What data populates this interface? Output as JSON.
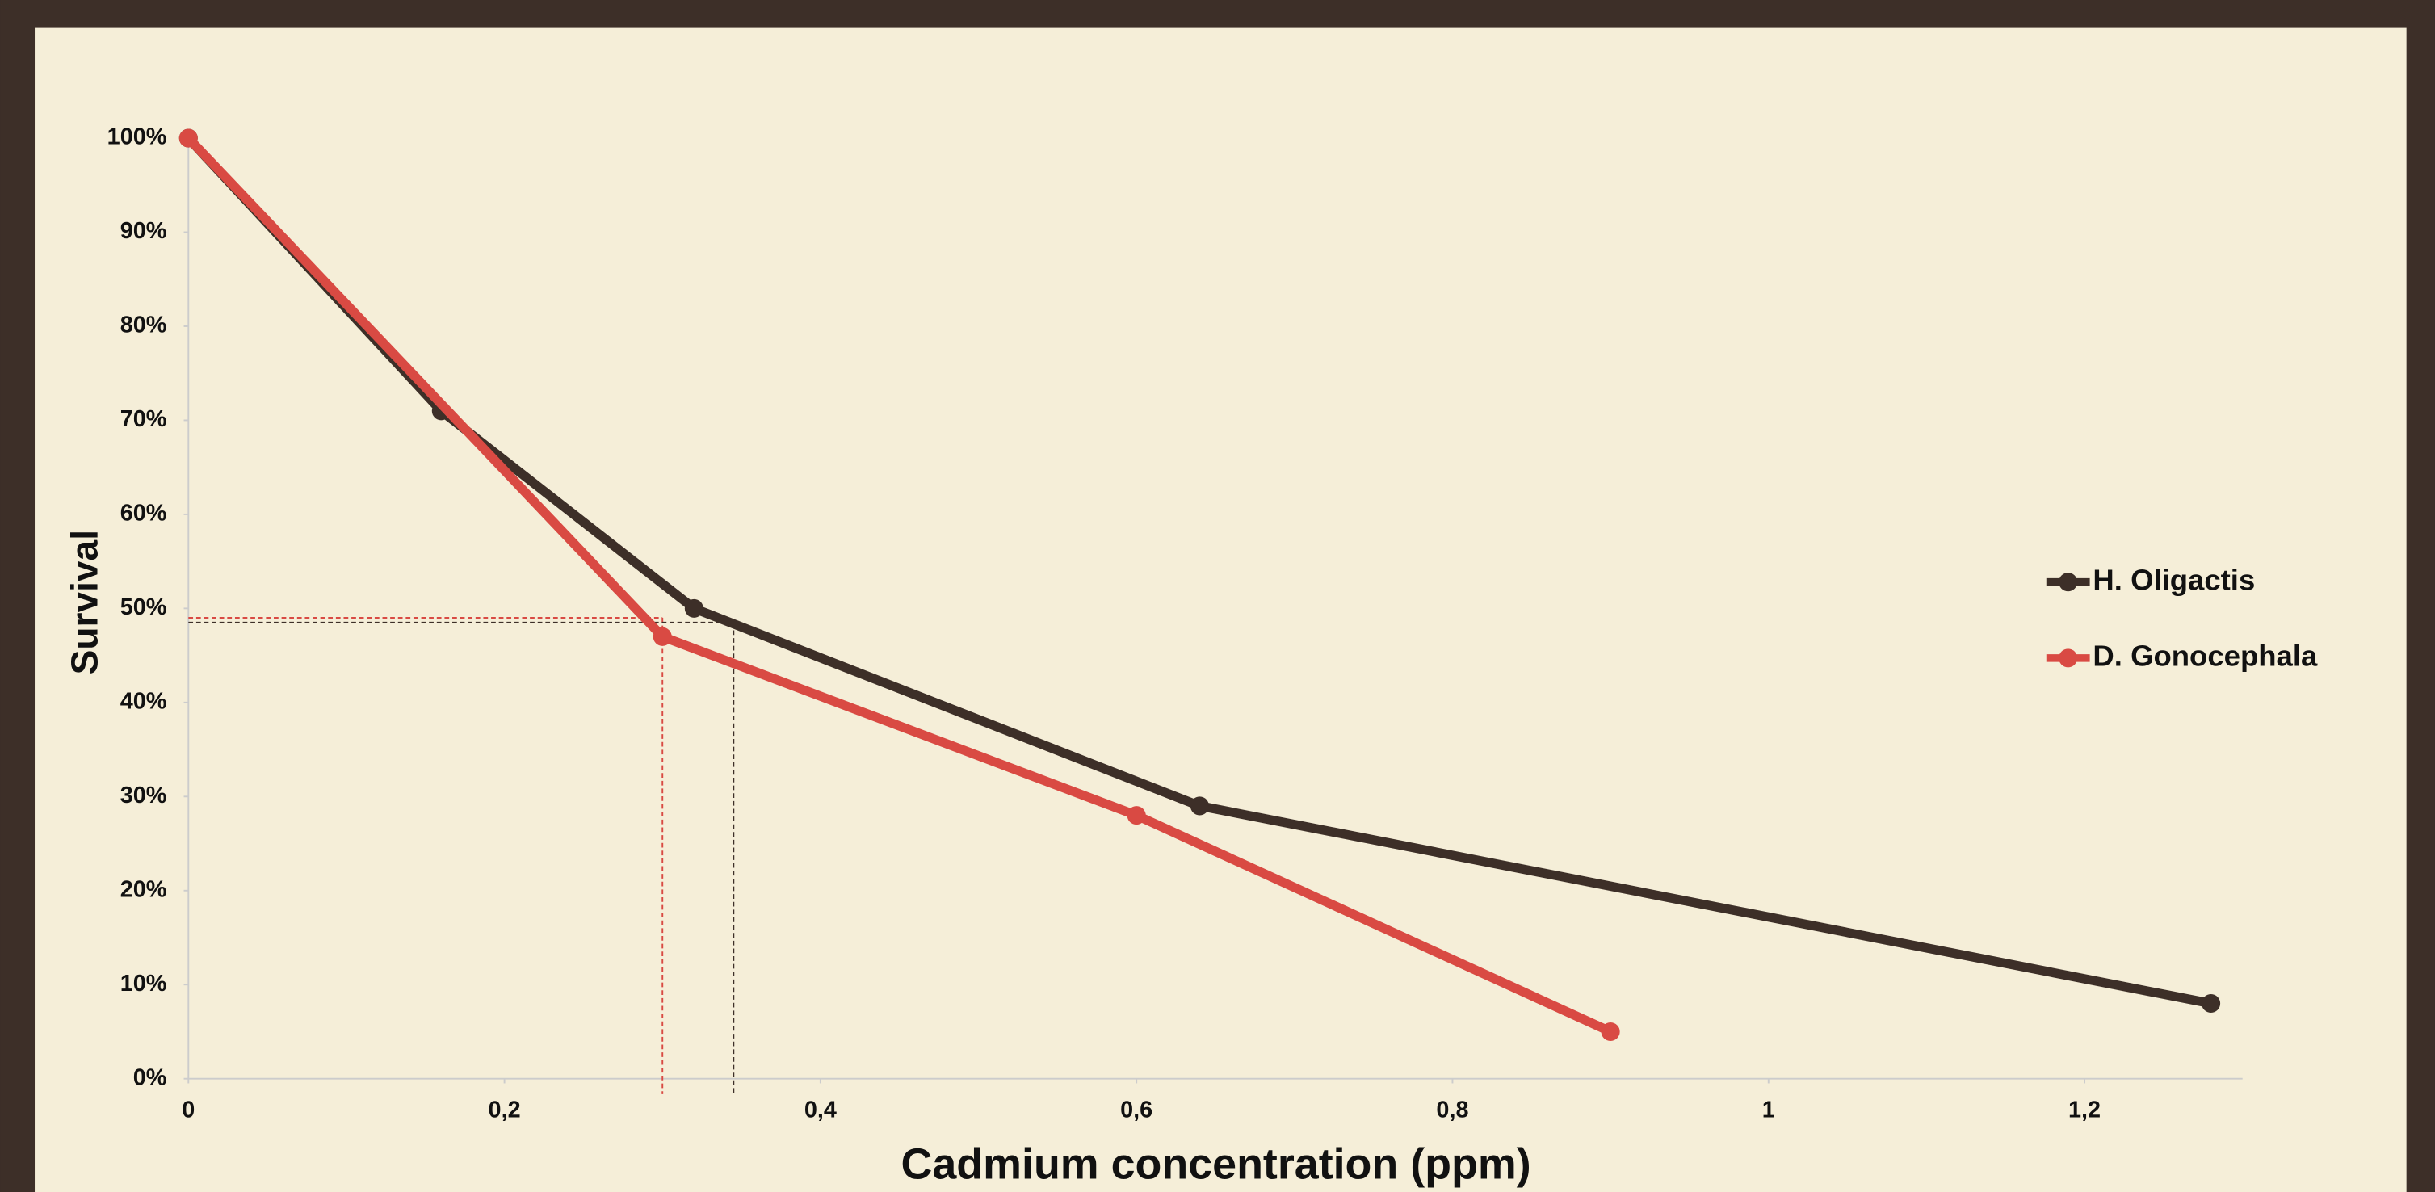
{
  "chart_data": {
    "type": "line",
    "x_label": "Cadmium concentration (ppm)",
    "y_label": "Survival",
    "series": [
      {
        "name": "H. Oligactis",
        "color": "#3d2f28",
        "x": [
          0,
          0.16,
          0.32,
          0.64,
          1.28
        ],
        "values": [
          100,
          71,
          50,
          29,
          8
        ]
      },
      {
        "name": "D. Gonocephala",
        "color": "#d94a43",
        "x": [
          0,
          0.3,
          0.6,
          0.9
        ],
        "values": [
          100,
          47,
          28,
          5
        ]
      }
    ],
    "annotations": [
      {
        "x": 0.3,
        "y": 49,
        "color": "#d94a43"
      },
      {
        "x": 0.345,
        "y": 48.5,
        "color": "#3d2f28"
      }
    ],
    "xlim": [
      0,
      1.3
    ],
    "xticks": [
      0,
      {
        "value": 0.2,
        "label": "0,2"
      },
      {
        "value": 0.4,
        "label": "0,4"
      },
      {
        "value": 0.6,
        "label": "0,6"
      },
      {
        "value": 0.8,
        "label": "0,8"
      },
      1,
      {
        "value": 1.2,
        "label": "1,2"
      }
    ],
    "ylim": [
      0,
      100
    ],
    "yticks": [
      {
        "value": 0,
        "label": "0%"
      },
      {
        "value": 10,
        "label": "10%"
      },
      {
        "value": 20,
        "label": "20%"
      },
      {
        "value": 30,
        "label": "30%"
      },
      {
        "value": 40,
        "label": "40%"
      },
      {
        "value": 50,
        "label": "50%"
      },
      {
        "value": 60,
        "label": "60%"
      },
      {
        "value": 70,
        "label": "70%"
      },
      {
        "value": 80,
        "label": "80%"
      },
      {
        "value": 90,
        "label": "90%"
      },
      {
        "value": 100,
        "label": "100%"
      }
    ],
    "legend": "right"
  }
}
